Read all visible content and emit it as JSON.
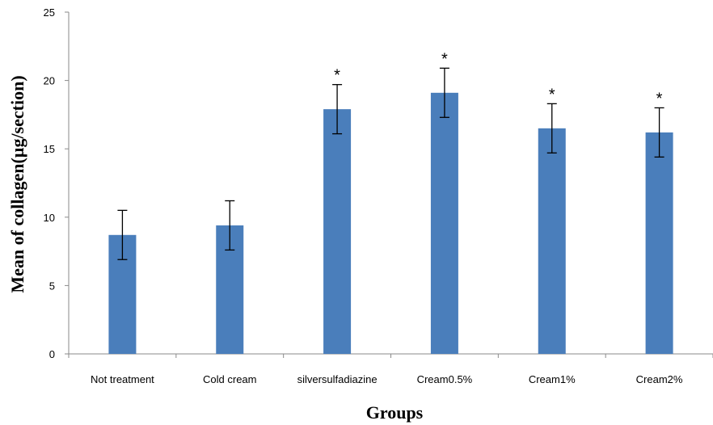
{
  "chart_data": {
    "type": "bar",
    "title": "",
    "xlabel": "Groups",
    "ylabel": "Mean of collagen(µg/section)",
    "ylim": [
      0,
      25
    ],
    "yticks": [
      0,
      5,
      10,
      15,
      20,
      25
    ],
    "grid": false,
    "legend": "none",
    "bar_color": "#4A7EBB",
    "categories": [
      "Not treatment",
      "Cold cream",
      "silversulfadiazine",
      "Cream0.5%",
      "Cream1%",
      "Cream2%"
    ],
    "values": [
      8.7,
      9.4,
      17.9,
      19.1,
      16.5,
      16.2
    ],
    "errors": [
      1.8,
      1.8,
      1.8,
      1.8,
      1.8,
      1.8
    ],
    "annotations": [
      "",
      "",
      "*",
      "*",
      "*",
      "*"
    ]
  }
}
